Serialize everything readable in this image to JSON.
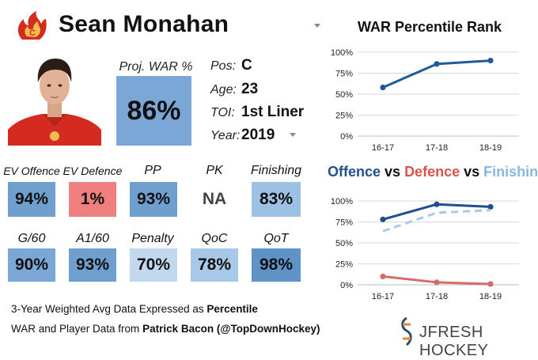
{
  "player": {
    "name": "Sean Monahan",
    "proj_war_label": "Proj. WAR %",
    "proj_war_value": "86%",
    "info": [
      {
        "label": "Pos:",
        "value": "C"
      },
      {
        "label": "Age:",
        "value": "23"
      },
      {
        "label": "TOI:",
        "value": "1st Liner"
      },
      {
        "label": "Year:",
        "value": "2019"
      }
    ]
  },
  "tiles": [
    {
      "label": "EV Offence",
      "value": "94%",
      "color": "#6f9fcf"
    },
    {
      "label": "EV Defence",
      "value": "1%",
      "color": "#f07f7f"
    },
    {
      "label": "PP",
      "value": "93%",
      "color": "#6f9fcf"
    },
    {
      "label": "PK",
      "value": "NA",
      "color": "#ffffff"
    },
    {
      "label": "Finishing",
      "value": "83%",
      "color": "#9cc1e4"
    },
    {
      "label": "G/60",
      "value": "90%",
      "color": "#7aa7d5"
    },
    {
      "label": "A1/60",
      "value": "93%",
      "color": "#6f9fcf"
    },
    {
      "label": "Penalty",
      "value": "70%",
      "color": "#c2d8ee"
    },
    {
      "label": "QoC",
      "value": "78%",
      "color": "#a8c8e8"
    },
    {
      "label": "QoT",
      "value": "98%",
      "color": "#5f93c7"
    }
  ],
  "footer": {
    "line1_prefix": "3-Year Weighted Avg Data Expressed as ",
    "line1_bold": "Percentile",
    "line2_prefix": "WAR and Player Data from ",
    "line2_bold": "Patrick Bacon (@TopDownHockey)",
    "brand": "JFRESH HOCKEY"
  },
  "chart_data": [
    {
      "type": "line",
      "title": "WAR Percentile Rank",
      "x": [
        "16-17",
        "17-18",
        "18-19"
      ],
      "series": [
        {
          "values": [
            58,
            86,
            90
          ],
          "color": "#1f5a9c",
          "style": "solid"
        }
      ],
      "ylim": [
        0,
        100
      ],
      "yticks": [
        "0%",
        "25%",
        "50%",
        "75%",
        "100%"
      ],
      "grid": true
    },
    {
      "type": "line",
      "title_parts": [
        {
          "text": "Offence",
          "color": "#1f4f8f"
        },
        {
          "text": " vs ",
          "color": "#111111"
        },
        {
          "text": "Defence",
          "color": "#d9534f"
        },
        {
          "text": " vs ",
          "color": "#111111"
        },
        {
          "text": "Finishing",
          "color": "#8ab6df"
        }
      ],
      "x": [
        "16-17",
        "17-18",
        "18-19"
      ],
      "series": [
        {
          "name": "Offence",
          "values": [
            78,
            96,
            93
          ],
          "color": "#1f4f8f",
          "style": "solid"
        },
        {
          "name": "Finishing",
          "values": [
            64,
            86,
            89
          ],
          "color": "#a9c9ea",
          "style": "dashed"
        },
        {
          "name": "Defence",
          "values": [
            10,
            3,
            1
          ],
          "color": "#d76a6a",
          "style": "solid"
        }
      ],
      "ylim": [
        0,
        100
      ],
      "yticks": [
        "0%",
        "25%",
        "50%",
        "75%",
        "100%"
      ],
      "grid": true
    }
  ]
}
